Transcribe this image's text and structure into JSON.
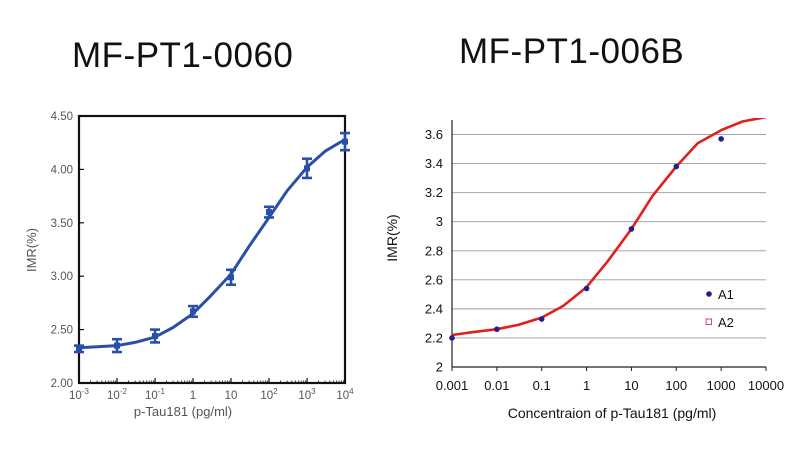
{
  "chart_data": [
    {
      "type": "line",
      "title": "MF-PT1-0060",
      "xlabel": "p-Tau181  (pg/ml)",
      "ylabel": "IMR(%)",
      "xscale": "log",
      "xlim": [
        0.001,
        10000
      ],
      "ylim": [
        2.0,
        4.5
      ],
      "x_tick_labels": [
        {
          "base": "10",
          "exp": "-3"
        },
        {
          "base": "10",
          "exp": "-2"
        },
        {
          "base": "10",
          "exp": "-1"
        },
        {
          "base": "1",
          "exp": ""
        },
        {
          "base": "10",
          "exp": ""
        },
        {
          "base": "10",
          "exp": "2"
        },
        {
          "base": "10",
          "exp": "3"
        },
        {
          "base": "10",
          "exp": "4"
        }
      ],
      "y_tick_labels": [
        "2.00",
        "2.50",
        "3.00",
        "3.50",
        "4.00",
        "4.50"
      ],
      "series": [
        {
          "type": "errorbar",
          "color": "#2a4fa8",
          "x": [
            0.001,
            0.01,
            0.1,
            1,
            10,
            100,
            1000,
            10000
          ],
          "y": [
            2.32,
            2.35,
            2.44,
            2.67,
            2.99,
            3.6,
            4.01,
            4.26
          ],
          "err": [
            0.03,
            0.06,
            0.06,
            0.05,
            0.07,
            0.05,
            0.09,
            0.08
          ]
        },
        {
          "type": "line",
          "color": "#2a4fa8",
          "x": [
            0.001,
            0.003,
            0.01,
            0.03,
            0.1,
            0.3,
            1,
            3,
            10,
            30,
            100,
            300,
            1000,
            3000,
            10000
          ],
          "y": [
            2.33,
            2.34,
            2.35,
            2.38,
            2.43,
            2.52,
            2.65,
            2.82,
            3.02,
            3.28,
            3.55,
            3.8,
            4.02,
            4.17,
            4.28
          ]
        }
      ],
      "grid": false,
      "frame": "box"
    },
    {
      "type": "scatter",
      "title": "MF-PT1-006B",
      "xlabel": "Concentraion of p-Tau181  (pg/ml)",
      "ylabel": "IMR(%)",
      "xscale": "log",
      "xlim": [
        0.001,
        10000
      ],
      "ylim": [
        2.0,
        3.7
      ],
      "x_tick_labels": [
        "0.001",
        "0.01",
        "0.1",
        "1",
        "10",
        "100",
        "1000",
        "10000"
      ],
      "y_tick_labels": [
        "2",
        "2.2",
        "2.4",
        "2.6",
        "2.8",
        "3",
        "3.2",
        "3.4",
        "3.6"
      ],
      "series": [
        {
          "name": "A1",
          "marker": "filled-circle",
          "color": "#1f1f8f",
          "x": [
            0.001,
            0.01,
            0.1,
            1,
            10,
            100,
            1000
          ],
          "y": [
            2.2,
            2.26,
            2.33,
            2.54,
            2.95,
            3.38,
            3.57
          ]
        },
        {
          "name": "A2",
          "marker": "open-square",
          "color": "#d0408a",
          "x": [],
          "y": []
        },
        {
          "type": "fit-line",
          "color": "#e0201c",
          "x": [
            0.001,
            0.003,
            0.01,
            0.03,
            0.1,
            0.3,
            1,
            3,
            10,
            30,
            100,
            300,
            1000,
            3000,
            10000
          ],
          "y": [
            2.22,
            2.24,
            2.26,
            2.29,
            2.34,
            2.42,
            2.55,
            2.73,
            2.95,
            3.18,
            3.38,
            3.54,
            3.63,
            3.69,
            3.72
          ]
        }
      ],
      "legend_position": "right",
      "grid": "horizontal"
    }
  ]
}
